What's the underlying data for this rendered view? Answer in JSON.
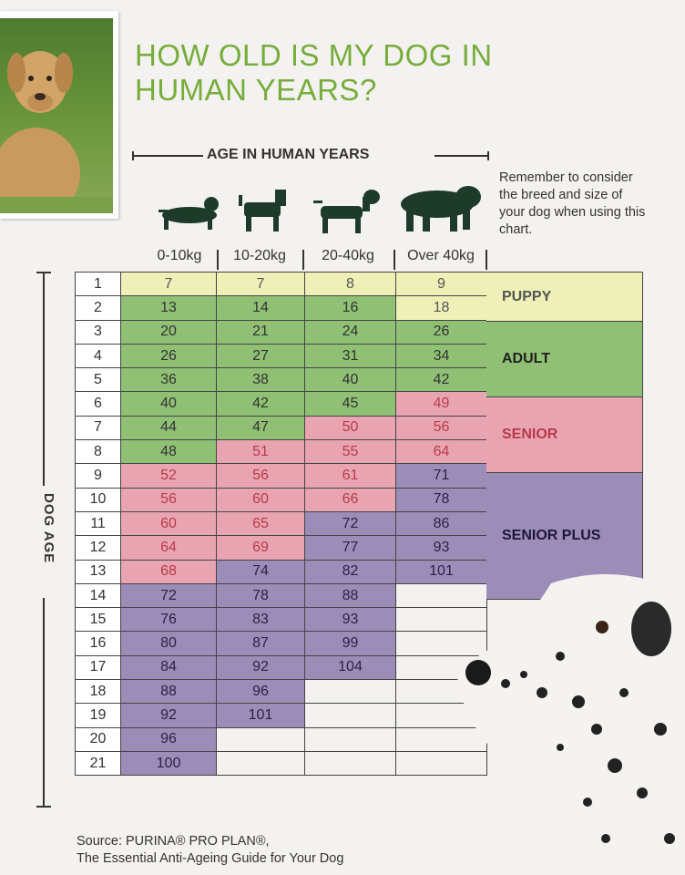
{
  "title": "HOW OLD IS MY DOG IN HUMAN YEARS?",
  "axis_top_label": "AGE IN HUMAN YEARS",
  "axis_side_label": "DOG AGE",
  "note": "Remember to consider the breed and size of your dog when using this chart.",
  "columns": [
    "0-10kg",
    "10-20kg",
    "20-40kg",
    "Over 40kg"
  ],
  "rows": [
    {
      "age": "1",
      "values": [
        "7",
        "7",
        "8",
        "9"
      ]
    },
    {
      "age": "2",
      "values": [
        "13",
        "14",
        "16",
        "18"
      ]
    },
    {
      "age": "3",
      "values": [
        "20",
        "21",
        "24",
        "26"
      ]
    },
    {
      "age": "4",
      "values": [
        "26",
        "27",
        "31",
        "34"
      ]
    },
    {
      "age": "5",
      "values": [
        "36",
        "38",
        "40",
        "42"
      ]
    },
    {
      "age": "6",
      "values": [
        "40",
        "42",
        "45",
        "49"
      ]
    },
    {
      "age": "7",
      "values": [
        "44",
        "47",
        "50",
        "56"
      ]
    },
    {
      "age": "8",
      "values": [
        "48",
        "51",
        "55",
        "64"
      ]
    },
    {
      "age": "9",
      "values": [
        "52",
        "56",
        "61",
        "71"
      ]
    },
    {
      "age": "10",
      "values": [
        "56",
        "60",
        "66",
        "78"
      ]
    },
    {
      "age": "11",
      "values": [
        "60",
        "65",
        "72",
        "86"
      ]
    },
    {
      "age": "12",
      "values": [
        "64",
        "69",
        "77",
        "93"
      ]
    },
    {
      "age": "13",
      "values": [
        "68",
        "74",
        "82",
        "101"
      ]
    },
    {
      "age": "14",
      "values": [
        "72",
        "78",
        "88",
        ""
      ]
    },
    {
      "age": "15",
      "values": [
        "76",
        "83",
        "93",
        ""
      ]
    },
    {
      "age": "16",
      "values": [
        "80",
        "87",
        "99",
        ""
      ]
    },
    {
      "age": "17",
      "values": [
        "84",
        "92",
        "104",
        ""
      ]
    },
    {
      "age": "18",
      "values": [
        "88",
        "96",
        "",
        ""
      ]
    },
    {
      "age": "19",
      "values": [
        "92",
        "101",
        "",
        ""
      ]
    },
    {
      "age": "20",
      "values": [
        "96",
        "",
        "",
        ""
      ]
    },
    {
      "age": "21",
      "values": [
        "100",
        "",
        "",
        ""
      ]
    }
  ],
  "stages": {
    "puppy": "PUPPY",
    "adult": "ADULT",
    "senior": "SENIOR",
    "senior_plus": "SENIOR PLUS"
  },
  "source_line1": "Source: PURINA® PRO PLAN®,",
  "source_line2": "The Essential Anti-Ageing Guide for Your Dog",
  "colors": {
    "title_green": "#77ad3c",
    "puppy": "#eef0b8",
    "adult": "#8fc074",
    "senior": "#e9a4b1",
    "senior_text": "#b73a4a",
    "senior_plus": "#9b8cb8"
  }
}
